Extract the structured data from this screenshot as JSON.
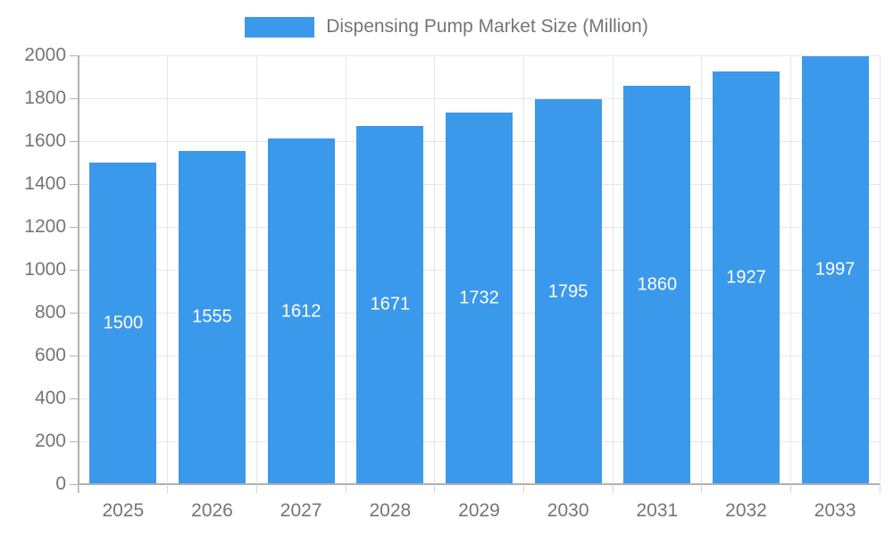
{
  "chart_data": {
    "type": "bar",
    "title": "Dispensing Pump Market Size (Million)",
    "categories": [
      "2025",
      "2026",
      "2027",
      "2028",
      "2029",
      "2030",
      "2031",
      "2032",
      "2033"
    ],
    "values": [
      1500,
      1555,
      1612,
      1671,
      1732,
      1795,
      1860,
      1927,
      1997
    ],
    "xlabel": "",
    "ylabel": "",
    "ylim": [
      0,
      2000
    ],
    "ytick_step": 200,
    "grid": true,
    "legend_position": "top-center",
    "bar_value_labels": "centered-white",
    "colors": {
      "bar": "#3b99ec",
      "bar_label": "#ffffff",
      "axis": "#b0b0b0",
      "grid": "#e6e6e6",
      "minor_tick": "#d6d6d6",
      "text": "#757575",
      "background": "#ffffff"
    }
  }
}
